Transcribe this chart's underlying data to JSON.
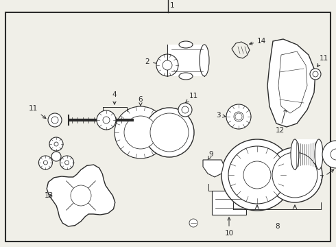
{
  "bg_color": "#f0efe8",
  "border_color": "#555555",
  "line_color": "#2a2a2a",
  "fig_width": 4.9,
  "fig_height": 3.6,
  "dpi": 100,
  "white": "#ffffff",
  "label_fontsize": 7.5
}
